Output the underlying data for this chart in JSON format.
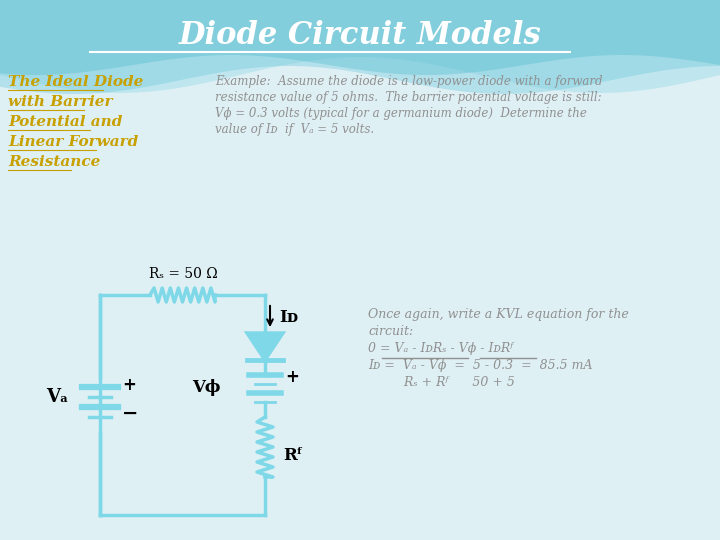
{
  "title": "Diode Circuit Models",
  "left_heading_lines": [
    "The Ideal Diode",
    "with Barrier",
    "Potential and",
    "Linear Forward",
    "Resistance"
  ],
  "example_text_lines": [
    "Example:  Assume the diode is a low-power diode with a forward",
    "resistance value of 5 ohms.  The barrier potential voltage is still:",
    "Vϕ = 0.3 volts (typical for a germanium diode)  Determine the",
    "value of Iᴅ  if  Vₐ = 5 volts."
  ],
  "kvl_text_lines": [
    "Once again, write a KVL equation for the",
    "circuit:",
    "0 = Vₐ - IᴅRₛ - Vϕ - IᴅRᶠ",
    "Iᴅ =  Vₐ - Vϕ  =  5 - 0.3  =  85.5 mA",
    "         Rₛ + Rᶠ      50 + 5"
  ],
  "rs_label": "Rₛ = 50 Ω",
  "id_label": "Iᴅ",
  "va_label": "Vₐ",
  "vphi_label": "Vϕ",
  "rf_label": "Rᶠ",
  "bg_color": "#dff0f5",
  "circuit_color": "#7fd8e8",
  "title_color": "#ffffff",
  "left_text_color": "#c8a000",
  "example_text_color": "#909090",
  "kvl_text_color": "#909090",
  "circuit_label_color": "#000000",
  "wave_colors": [
    "#a0dde8",
    "#70c8dc",
    "#50b8cc"
  ],
  "wave_alphas": [
    0.5,
    0.4,
    0.35
  ]
}
